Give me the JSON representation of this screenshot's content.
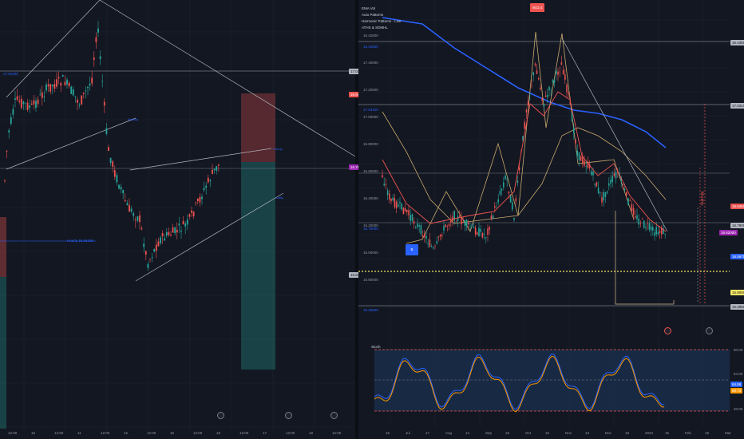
{
  "left": {
    "price_labels": {
      "top": "17.01000",
      "line_left": "17.01000",
      "mid": "16.94306",
      "hourly": "Hourly 16.86195",
      "low_a": "16.76990",
      "low_b": "16.63995"
    },
    "trend_labels": {
      "weekly": "Weekly",
      "hourly": "Hourly",
      "daily": "Daily"
    },
    "right_axis": [
      "16.74500",
      "16.71500",
      "16.70000",
      "16.69000"
    ],
    "time_axis": [
      "12:00",
      "10",
      "12:00",
      "11",
      "12:00",
      "12",
      "12:00",
      "15",
      "12:00",
      "16",
      "12:00",
      "17",
      "12:00",
      "18",
      "12:00"
    ],
    "bottom_badge": "16.74875"
  },
  "right": {
    "legend": [
      "EMA Vol",
      "Auto Patterns",
      "Harmonic Patterns - Live",
      "ATHS & SDMHL"
    ],
    "top_badge": "W,D,4",
    "price_labels": {
      "top": "16.42500",
      "l1": "17.03100",
      "l2": "17.01000",
      "l3": "16.79000",
      "l4": "16.28500"
    },
    "right_axis": [
      "16.42500",
      "17.40000",
      "17.20000",
      "17.00000",
      "16.80000",
      "16.60000",
      "16.40000",
      "16.20000",
      "16.00000",
      "15.80000"
    ],
    "price_tags": [
      "16.43500",
      "17.03100",
      "16.84500",
      "16.79000",
      "16.56700",
      "16.28500",
      "15.80000"
    ],
    "current_price": "16.62000",
    "vertical_text": "Monthly",
    "buy_label": "B",
    "stoch_label": "Stoch",
    "stoch_axis": [
      "80.00",
      "64.00",
      "20.00"
    ],
    "stoch_tags": [
      "64.58",
      "60.73"
    ],
    "time_axis": [
      "15",
      "Jul",
      "17",
      "Aug",
      "14",
      "Sep",
      "18",
      "Oct",
      "16",
      "Nov",
      "13",
      "Dec",
      "18",
      "2024",
      "15",
      "Feb",
      "19",
      "Mar"
    ]
  },
  "colors": {
    "background": "#131722",
    "grid": "#1e222d",
    "bull": "#26a69a",
    "bear": "#ef5350",
    "ema_blue": "#2962ff",
    "trend_gray": "#b2b5be"
  }
}
